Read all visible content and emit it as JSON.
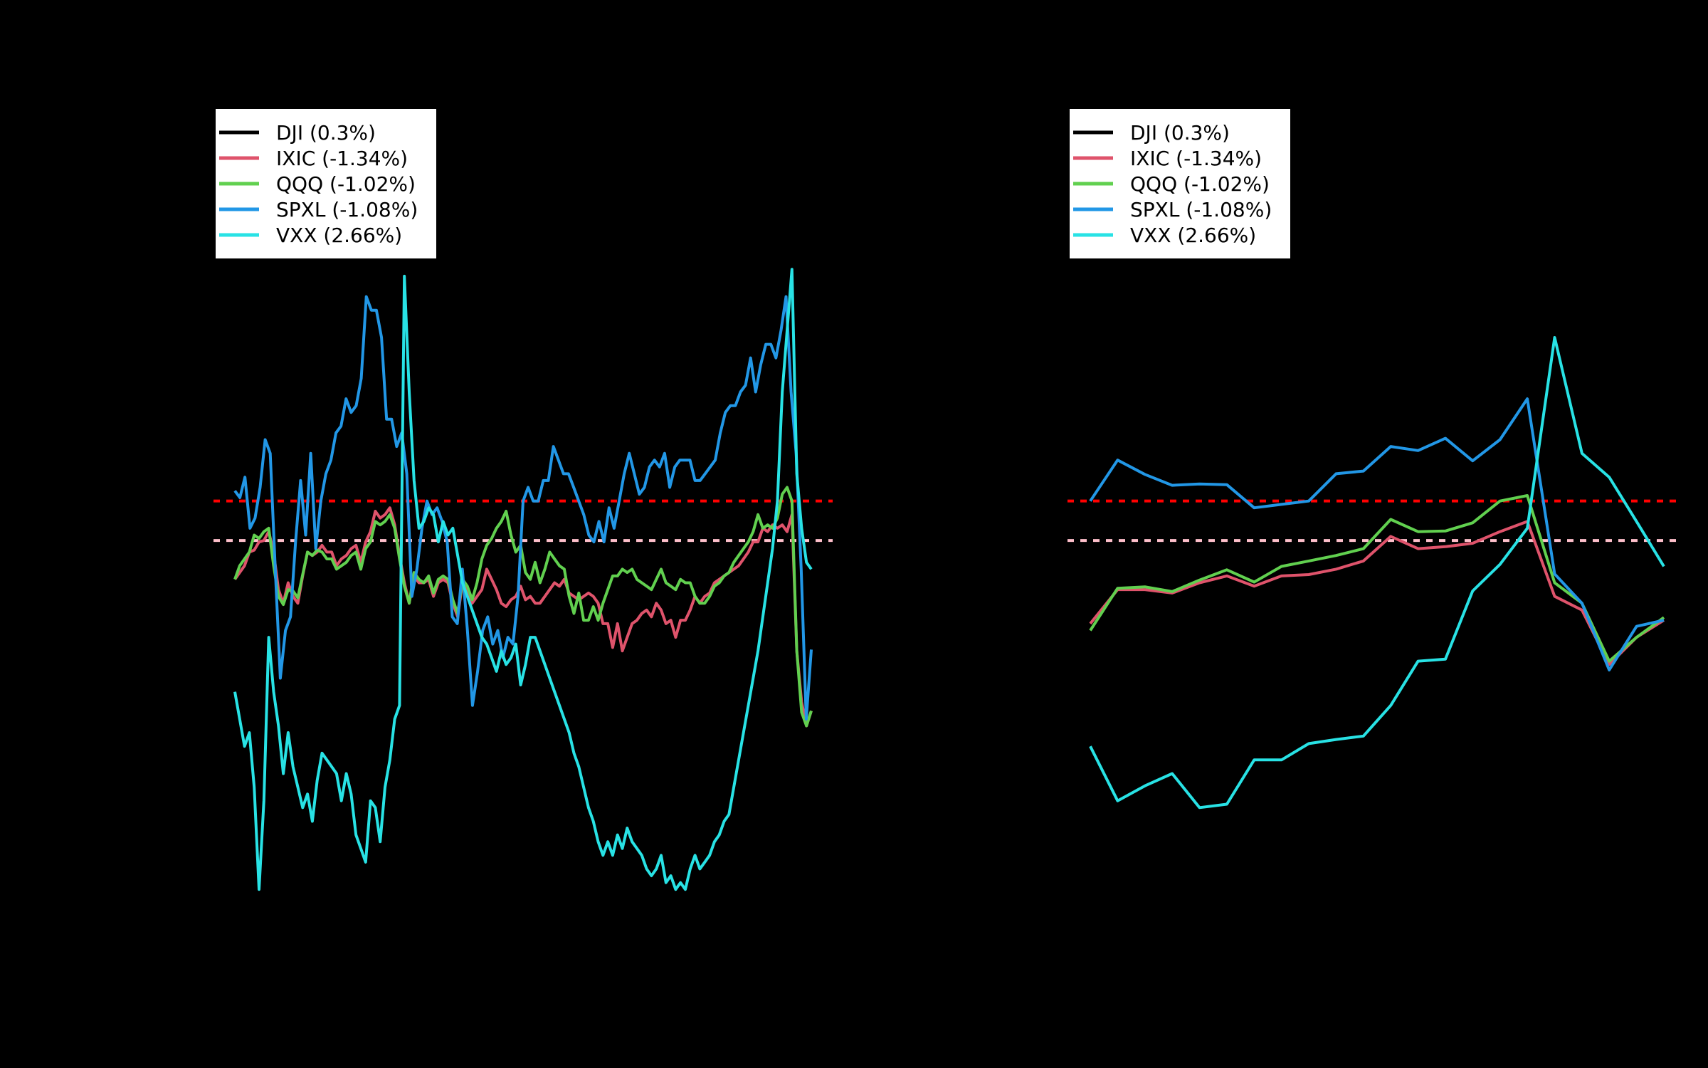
{
  "chart_data": [
    {
      "type": "line",
      "title": "",
      "xlabel": "",
      "ylabel": "",
      "x_count": 120,
      "ylim": [
        0,
        1
      ],
      "grid": false,
      "legend_position": "top-left",
      "reference_lines": [
        {
          "y": 0.62,
          "color": "#ff0000",
          "style": "dotted"
        },
        {
          "y": 0.562,
          "color": "#ffc0cb",
          "style": "dotted"
        }
      ],
      "series": [
        {
          "name": "DJI (0.3%)",
          "color": "#000000",
          "values": []
        },
        {
          "name": "IXIC (-1.34%)",
          "color": "#df536b",
          "values": [
            0.505,
            0.515,
            0.525,
            0.545,
            0.548,
            0.56,
            0.562,
            0.575,
            0.545,
            0.49,
            0.47,
            0.5,
            0.48,
            0.47,
            0.51,
            0.545,
            0.54,
            0.545,
            0.555,
            0.545,
            0.545,
            0.525,
            0.535,
            0.54,
            0.55,
            0.555,
            0.53,
            0.56,
            0.575,
            0.605,
            0.595,
            0.6,
            0.61,
            0.585,
            0.54,
            0.5,
            0.47,
            0.51,
            0.5,
            0.5,
            0.505,
            0.48,
            0.5,
            0.505,
            0.5,
            0.47,
            0.45,
            0.5,
            0.49,
            0.47,
            0.48,
            0.49,
            0.52,
            0.505,
            0.49,
            0.47,
            0.465,
            0.475,
            0.48,
            0.495,
            0.475,
            0.48,
            0.47,
            0.47,
            0.48,
            0.49,
            0.5,
            0.495,
            0.505,
            0.485,
            0.48,
            0.475,
            0.48,
            0.485,
            0.48,
            0.47,
            0.44,
            0.44,
            0.405,
            0.44,
            0.4,
            0.42,
            0.44,
            0.445,
            0.455,
            0.46,
            0.45,
            0.47,
            0.46,
            0.44,
            0.445,
            0.42,
            0.445,
            0.445,
            0.46,
            0.48,
            0.47,
            0.48,
            0.485,
            0.5,
            0.505,
            0.51,
            0.515,
            0.52,
            0.525,
            0.535,
            0.545,
            0.56,
            0.56,
            0.58,
            0.575,
            0.585,
            0.58,
            0.585,
            0.575,
            0.6,
            0.4,
            0.325,
            0.29,
            0.312
          ]
        },
        {
          "name": "QQQ (-1.02%)",
          "color": "#61d04f",
          "values": [
            0.505,
            0.525,
            0.535,
            0.545,
            0.57,
            0.565,
            0.575,
            0.58,
            0.525,
            0.48,
            0.468,
            0.49,
            0.488,
            0.478,
            0.512,
            0.545,
            0.54,
            0.548,
            0.545,
            0.535,
            0.535,
            0.52,
            0.525,
            0.53,
            0.54,
            0.545,
            0.52,
            0.55,
            0.56,
            0.59,
            0.585,
            0.59,
            0.6,
            0.58,
            0.535,
            0.495,
            0.47,
            0.515,
            0.505,
            0.5,
            0.51,
            0.485,
            0.505,
            0.51,
            0.505,
            0.475,
            0.455,
            0.505,
            0.495,
            0.475,
            0.5,
            0.535,
            0.555,
            0.565,
            0.58,
            0.59,
            0.605,
            0.57,
            0.545,
            0.555,
            0.515,
            0.505,
            0.53,
            0.5,
            0.52,
            0.545,
            0.535,
            0.525,
            0.52,
            0.48,
            0.455,
            0.485,
            0.445,
            0.445,
            0.465,
            0.445,
            0.47,
            0.49,
            0.51,
            0.51,
            0.52,
            0.515,
            0.52,
            0.505,
            0.5,
            0.495,
            0.49,
            0.505,
            0.52,
            0.5,
            0.495,
            0.49,
            0.505,
            0.5,
            0.5,
            0.48,
            0.47,
            0.47,
            0.48,
            0.495,
            0.5,
            0.51,
            0.515,
            0.53,
            0.54,
            0.55,
            0.56,
            0.575,
            0.6,
            0.58,
            0.585,
            0.58,
            0.595,
            0.63,
            0.64,
            0.62,
            0.4,
            0.31,
            0.29,
            0.312
          ]
        },
        {
          "name": "SPXL (-1.08%)",
          "color": "#2297e6",
          "values": [
            0.635,
            0.625,
            0.655,
            0.58,
            0.595,
            0.64,
            0.71,
            0.69,
            0.52,
            0.36,
            0.43,
            0.45,
            0.56,
            0.65,
            0.57,
            0.69,
            0.55,
            0.62,
            0.66,
            0.68,
            0.72,
            0.73,
            0.77,
            0.75,
            0.76,
            0.8,
            0.92,
            0.9,
            0.9,
            0.86,
            0.74,
            0.74,
            0.7,
            0.72,
            0.66,
            0.48,
            0.52,
            0.58,
            0.62,
            0.6,
            0.61,
            0.59,
            0.56,
            0.45,
            0.44,
            0.52,
            0.43,
            0.32,
            0.37,
            0.43,
            0.45,
            0.41,
            0.43,
            0.39,
            0.42,
            0.41,
            0.48,
            0.62,
            0.64,
            0.62,
            0.62,
            0.65,
            0.65,
            0.7,
            0.68,
            0.66,
            0.66,
            0.64,
            0.62,
            0.6,
            0.57,
            0.56,
            0.59,
            0.56,
            0.61,
            0.58,
            0.62,
            0.66,
            0.69,
            0.66,
            0.63,
            0.64,
            0.67,
            0.68,
            0.67,
            0.69,
            0.64,
            0.67,
            0.68,
            0.68,
            0.68,
            0.65,
            0.65,
            0.66,
            0.67,
            0.68,
            0.72,
            0.75,
            0.76,
            0.76,
            0.78,
            0.79,
            0.83,
            0.78,
            0.82,
            0.85,
            0.85,
            0.83,
            0.87,
            0.92,
            0.78,
            0.69,
            0.52,
            0.3,
            0.402
          ]
        },
        {
          "name": "VXX (2.66%)",
          "color": "#28e2e5",
          "values": [
            0.34,
            0.3,
            0.26,
            0.28,
            0.2,
            0.05,
            0.18,
            0.42,
            0.34,
            0.29,
            0.22,
            0.28,
            0.23,
            0.2,
            0.17,
            0.19,
            0.15,
            0.21,
            0.25,
            0.24,
            0.23,
            0.22,
            0.18,
            0.22,
            0.19,
            0.13,
            0.11,
            0.09,
            0.18,
            0.17,
            0.12,
            0.2,
            0.24,
            0.3,
            0.32,
            0.95,
            0.78,
            0.65,
            0.58,
            0.59,
            0.61,
            0.6,
            0.56,
            0.59,
            0.57,
            0.58,
            0.54,
            0.5,
            0.48,
            0.46,
            0.44,
            0.42,
            0.41,
            0.39,
            0.37,
            0.4,
            0.38,
            0.39,
            0.41,
            0.35,
            0.38,
            0.42,
            0.42,
            0.4,
            0.38,
            0.36,
            0.34,
            0.32,
            0.3,
            0.28,
            0.25,
            0.23,
            0.2,
            0.17,
            0.15,
            0.12,
            0.1,
            0.12,
            0.1,
            0.13,
            0.11,
            0.14,
            0.12,
            0.11,
            0.1,
            0.08,
            0.07,
            0.08,
            0.1,
            0.06,
            0.07,
            0.05,
            0.06,
            0.05,
            0.08,
            0.1,
            0.08,
            0.09,
            0.1,
            0.12,
            0.13,
            0.15,
            0.16,
            0.2,
            0.24,
            0.28,
            0.32,
            0.36,
            0.4,
            0.45,
            0.5,
            0.55,
            0.62,
            0.78,
            0.87,
            0.96,
            0.66,
            0.58,
            0.53,
            0.52
          ]
        }
      ]
    },
    {
      "type": "line",
      "title": "",
      "xlabel": "",
      "ylabel": "",
      "x_count": 22,
      "ylim": [
        0,
        1
      ],
      "grid": false,
      "legend_position": "top-left",
      "reference_lines": [
        {
          "y": 0.62,
          "color": "#ff0000",
          "style": "dashed"
        },
        {
          "y": 0.562,
          "color": "#ffc0cb",
          "style": "dotted"
        }
      ],
      "series": [
        {
          "name": "DJI (0.3%)",
          "color": "#000000",
          "values": []
        },
        {
          "name": "IXIC (-1.34%)",
          "color": "#df536b",
          "values": [
            0.44,
            0.49,
            0.49,
            0.485,
            0.5,
            0.51,
            0.495,
            0.51,
            0.512,
            0.52,
            0.532,
            0.568,
            0.55,
            0.553,
            0.558,
            0.575,
            0.59,
            0.48,
            0.46,
            0.38,
            0.42,
            0.445
          ]
        },
        {
          "name": "QQQ (-1.02%)",
          "color": "#61d04f",
          "values": [
            0.43,
            0.492,
            0.494,
            0.487,
            0.504,
            0.519,
            0.501,
            0.524,
            0.532,
            0.54,
            0.55,
            0.593,
            0.575,
            0.576,
            0.588,
            0.62,
            0.628,
            0.5,
            0.47,
            0.385,
            0.42,
            0.449
          ]
        },
        {
          "name": "SPXL (-1.08%)",
          "color": "#2297e6",
          "values": [
            0.62,
            0.68,
            0.659,
            0.643,
            0.645,
            0.644,
            0.61,
            0.615,
            0.62,
            0.66,
            0.664,
            0.7,
            0.694,
            0.712,
            0.679,
            0.71,
            0.77,
            0.513,
            0.47,
            0.372,
            0.436,
            0.445
          ]
        },
        {
          "name": "VXX (2.66%)",
          "color": "#28e2e5",
          "values": [
            0.26,
            0.18,
            0.202,
            0.22,
            0.17,
            0.175,
            0.24,
            0.24,
            0.264,
            0.27,
            0.275,
            0.32,
            0.385,
            0.388,
            0.488,
            0.527,
            0.58,
            0.86,
            0.69,
            0.655,
            0.59,
            0.524
          ]
        }
      ]
    }
  ]
}
